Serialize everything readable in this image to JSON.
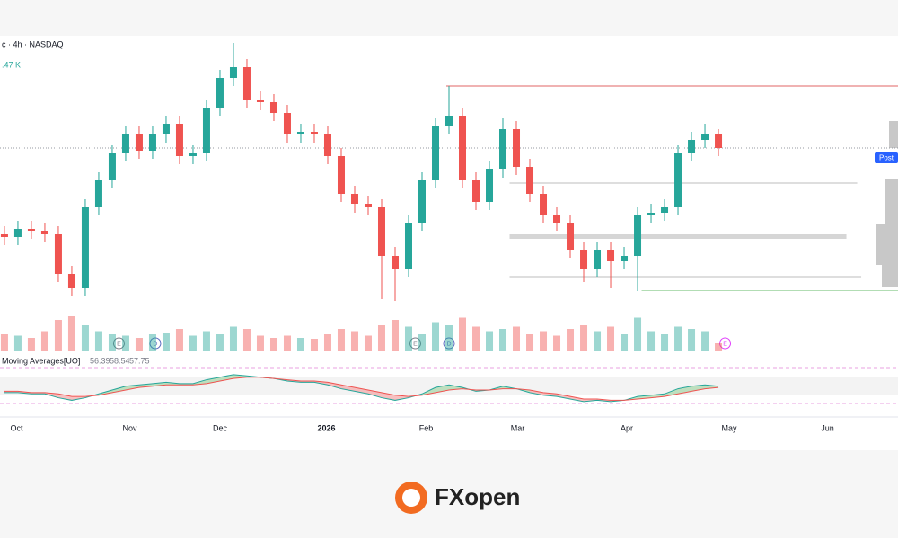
{
  "header": {
    "symbol": "c · 4h · NASDAQ",
    "volume_text": ".47 K"
  },
  "chart_data": [
    {
      "type": "candlestick",
      "up_color": "#26a69a",
      "down_color": "#ef5350",
      "ylim": [
        0,
        100
      ],
      "xlim": [
        -0.33,
        66.33
      ],
      "xticks": [
        {
          "value": 0.9,
          "label": "Oct"
        },
        {
          "value": 9.3,
          "label": "Nov"
        },
        {
          "value": 16,
          "label": "Dec"
        },
        {
          "value": 23.9,
          "label": "2026"
        },
        {
          "value": 31.3,
          "label": "Feb"
        },
        {
          "value": 38.1,
          "label": "Mar"
        },
        {
          "value": 46.2,
          "label": "Apr"
        },
        {
          "value": 53.8,
          "label": "May"
        },
        {
          "value": 61.1,
          "label": "Jun"
        }
      ],
      "open": [
        28,
        27,
        30,
        29,
        28,
        13,
        8,
        38,
        48,
        58,
        65,
        59,
        65,
        69,
        57,
        58,
        75,
        86,
        90,
        78,
        77,
        73,
        65,
        66,
        65,
        57,
        43,
        39,
        38,
        20,
        15,
        32,
        48,
        68,
        72,
        48,
        40,
        52,
        67,
        53,
        43,
        35,
        32,
        22,
        15,
        22,
        18,
        20,
        35,
        36,
        38,
        58,
        63,
        65
      ],
      "high": [
        31,
        33,
        33,
        32,
        31,
        16,
        41,
        51,
        61,
        68,
        68,
        68,
        72,
        72,
        61,
        78,
        89,
        99,
        93,
        81,
        80,
        76,
        69,
        69,
        68,
        60,
        46,
        42,
        41,
        23,
        35,
        51,
        71,
        83,
        75,
        51,
        55,
        71,
        70,
        56,
        46,
        38,
        35,
        25,
        25,
        25,
        23,
        38,
        39,
        41,
        61,
        66,
        69,
        67
      ],
      "low": [
        24,
        24,
        26,
        25,
        10,
        5,
        5,
        35,
        45,
        55,
        56,
        56,
        62,
        54,
        54,
        55,
        72,
        83,
        75,
        74,
        70,
        62,
        62,
        62,
        54,
        40,
        36,
        35,
        4,
        3,
        12,
        29,
        45,
        65,
        45,
        37,
        37,
        49,
        50,
        40,
        32,
        29,
        19,
        10,
        12,
        8,
        15,
        7,
        32,
        33,
        35,
        55,
        60,
        57
      ],
      "close": [
        27,
        30,
        29,
        28,
        13,
        8,
        38,
        48,
        58,
        65,
        59,
        65,
        69,
        57,
        58,
        75,
        86,
        90,
        78,
        77,
        73,
        65,
        66,
        65,
        57,
        43,
        39,
        38,
        20,
        15,
        32,
        48,
        68,
        72,
        48,
        40,
        52,
        67,
        53,
        43,
        35,
        32,
        22,
        15,
        22,
        18,
        20,
        35,
        36,
        38,
        58,
        63,
        65,
        60
      ],
      "levels": [
        {
          "value": 83,
          "start": 32.8,
          "end": 66.33,
          "color": "#e06666"
        },
        {
          "value": 7,
          "start": 47.3,
          "end": 66.33,
          "color": "#66bb6a"
        },
        {
          "value": 47,
          "start": 37.5,
          "end": 63.3,
          "color": "#bdbdbd"
        },
        {
          "value": 12,
          "start": 37.5,
          "end": 63.6,
          "color": "#bdbdbd"
        },
        {
          "value": 27,
          "start": 37.5,
          "end": 62.5,
          "color": "#d6d6d6"
        }
      ],
      "price_label": "Post",
      "events": [
        {
          "label": "E",
          "x": 8.5,
          "color": "#787b86"
        },
        {
          "label": "D",
          "x": 11.2,
          "color": "#5c6bc0"
        },
        {
          "label": "E",
          "x": 30.5,
          "color": "#787b86"
        },
        {
          "label": "D",
          "x": 33,
          "color": "#5c6bc0"
        },
        {
          "label": "E",
          "x": 53.5,
          "color": "#e040fb"
        }
      ]
    },
    {
      "type": "bar",
      "ylim": [
        0,
        100
      ],
      "values": [
        40,
        35,
        30,
        45,
        70,
        80,
        60,
        45,
        40,
        35,
        30,
        38,
        42,
        50,
        35,
        45,
        40,
        55,
        50,
        35,
        30,
        35,
        30,
        28,
        40,
        50,
        45,
        35,
        60,
        70,
        55,
        40,
        65,
        60,
        75,
        55,
        45,
        50,
        55,
        40,
        45,
        35,
        50,
        60,
        45,
        55,
        40,
        75,
        45,
        40,
        55,
        50,
        45,
        20
      ]
    },
    {
      "type": "line",
      "title": "Moving Averages[UO]",
      "legend_values": [
        56.39,
        58.54,
        57.75
      ],
      "ylim": [
        40,
        75
      ],
      "series": [
        {
          "color": "#26a69a",
          "values": [
            52,
            52,
            51,
            51,
            48,
            46,
            48,
            51,
            54,
            57,
            58,
            59,
            60,
            59,
            59,
            62,
            64,
            66,
            65,
            64,
            63,
            61,
            60,
            60,
            58,
            55,
            53,
            51,
            48,
            46,
            48,
            51,
            56,
            58,
            56,
            53,
            54,
            57,
            55,
            52,
            50,
            49,
            47,
            45,
            46,
            45,
            46,
            49,
            50,
            51,
            55,
            57,
            58,
            57
          ]
        },
        {
          "color": "#ef5350",
          "values": [
            53,
            53,
            52,
            52,
            51,
            49,
            49,
            50,
            52,
            54,
            56,
            57,
            58,
            58,
            58,
            59,
            61,
            63,
            64,
            64,
            63,
            62,
            61,
            61,
            60,
            58,
            56,
            54,
            52,
            50,
            49,
            50,
            52,
            54,
            55,
            54,
            54,
            55,
            55,
            54,
            52,
            51,
            49,
            47,
            47,
            46,
            46,
            47,
            48,
            49,
            51,
            53,
            55,
            56
          ]
        }
      ]
    }
  ],
  "logo": "FXopen"
}
